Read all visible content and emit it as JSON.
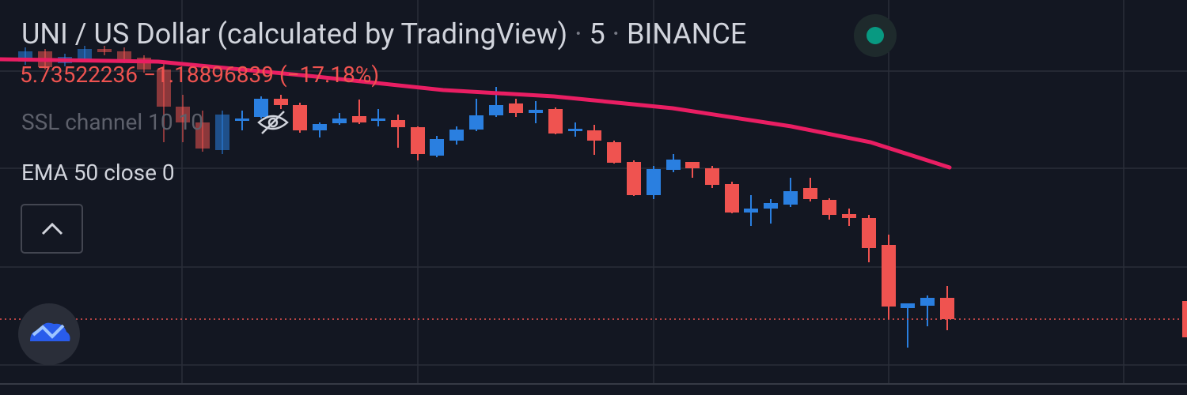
{
  "legend": {
    "symbol": "UNI / US Dollar (calculated by TradingView)",
    "separator": "·",
    "interval": "5",
    "exchange": "BINANCE",
    "price": "5.73522236",
    "change": "−1.18896839",
    "change_percent": "(−17.18%)",
    "indicators": [
      "SSL channel 10 10",
      "EMA 50 close 0"
    ]
  }
}
